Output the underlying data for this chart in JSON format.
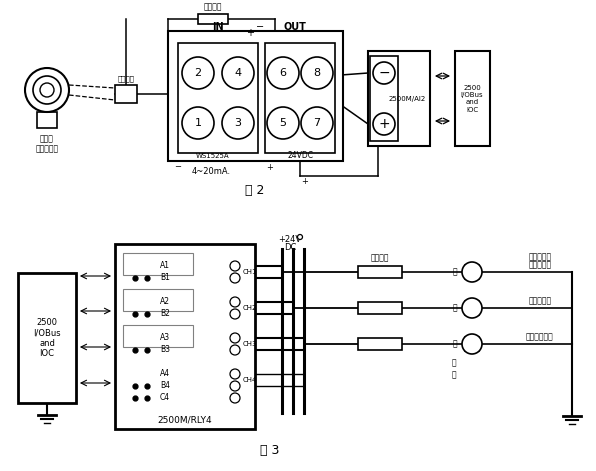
{
  "fig_width": 5.96,
  "fig_height": 4.71,
  "dpi": 100,
  "bg_color": "#ffffff",
  "fig2_caption": "图 2",
  "fig3_caption": "图 3",
  "label_baoxian": "保险端子",
  "label_sensor": "磁浮子\n液位变送器",
  "label_shield": "屏蔽电感",
  "label_4to20": "4~20mA.",
  "label_WS": "WS1525A",
  "label_24VDC": "24VDC",
  "label_IN": "IN",
  "label_OUT": "OUT",
  "label_2500AI2": "2500M/AI2",
  "label_2500IOC1": "2500\nI/OBus\nand\nIOC",
  "label_2500IOC2": "2500\nI/OBus\nand\nIOC",
  "label_2500RLY4": "2500M/RLY4",
  "label_alarm1": "液位高报警",
  "label_alarm2": "液位低报警",
  "label_alarm3": "液位失真报警",
  "label_separator": "中间分离器",
  "label_sound": "声",
  "label_light": "光",
  "label_report": "报",
  "label_alarm_dev1": "警",
  "label_alarm_dev2": "器",
  "label_baoxian2": "保险端子"
}
